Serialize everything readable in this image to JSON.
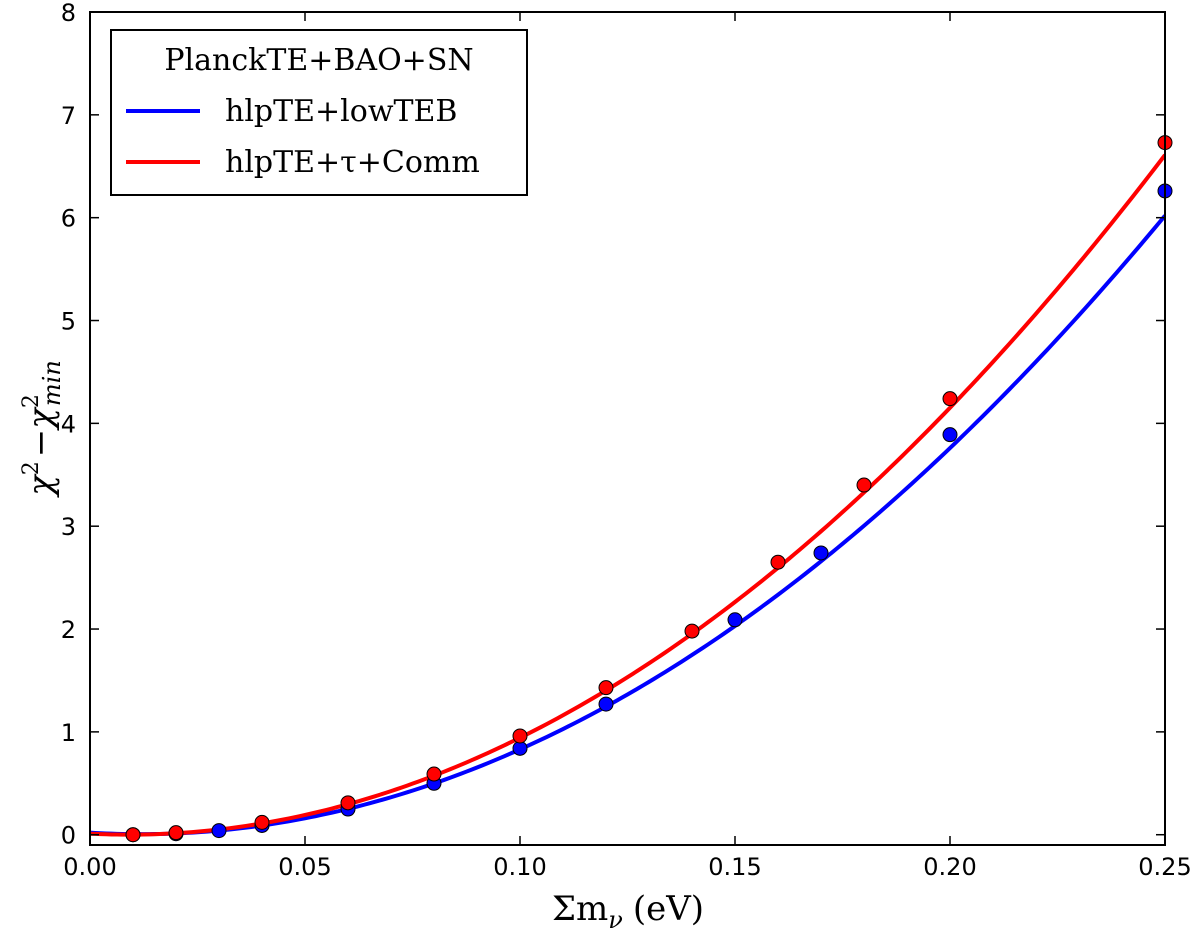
{
  "chart_data": {
    "type": "line",
    "xlabel": "Σm",
    "xlabel_sub": "ν",
    "xlabel_unit": "(eV)",
    "ylabel_parts": [
      "χ",
      "2",
      "−χ",
      "2",
      "min"
    ],
    "xlim": [
      0.0,
      0.25
    ],
    "ylim": [
      -0.1,
      8
    ],
    "x_ticks": [
      0.0,
      0.05,
      0.1,
      0.15,
      0.2,
      0.25
    ],
    "x_tick_labels": [
      "0.00",
      "0.05",
      "0.10",
      "0.15",
      "0.20",
      "0.25"
    ],
    "y_ticks": [
      0,
      1,
      2,
      3,
      4,
      5,
      6,
      7,
      8
    ],
    "y_tick_labels": [
      "0",
      "1",
      "2",
      "3",
      "4",
      "5",
      "6",
      "7",
      "8"
    ],
    "grid": false,
    "legend": {
      "title": "PlanckTE+BAO+SN",
      "placement": "top-left"
    },
    "series": [
      {
        "name": "hlpTE+lowTEB",
        "color": "#0000ff",
        "fit": {
          "a": 106.0,
          "b": -2.5,
          "c": 0.02
        },
        "points": [
          [
            0.01,
            0.0
          ],
          [
            0.02,
            0.01
          ],
          [
            0.03,
            0.04
          ],
          [
            0.04,
            0.09
          ],
          [
            0.06,
            0.25
          ],
          [
            0.08,
            0.5
          ],
          [
            0.1,
            0.84
          ],
          [
            0.12,
            1.27
          ],
          [
            0.15,
            2.09
          ],
          [
            0.17,
            2.74
          ],
          [
            0.2,
            3.89
          ],
          [
            0.25,
            6.26
          ]
        ]
      },
      {
        "name": "hlpTE+τ+Comm",
        "color": "#ff0000",
        "fit": {
          "a": 113.8,
          "b": -2.05,
          "c": 0.01
        },
        "points": [
          [
            0.01,
            0.0
          ],
          [
            0.02,
            0.02
          ],
          [
            0.04,
            0.12
          ],
          [
            0.06,
            0.31
          ],
          [
            0.08,
            0.59
          ],
          [
            0.1,
            0.96
          ],
          [
            0.12,
            1.43
          ],
          [
            0.14,
            1.98
          ],
          [
            0.16,
            2.65
          ],
          [
            0.18,
            3.4
          ],
          [
            0.2,
            4.24
          ],
          [
            0.25,
            6.73
          ]
        ]
      }
    ]
  }
}
